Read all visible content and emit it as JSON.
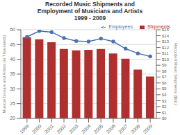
{
  "chart_data": {
    "type": "bar",
    "title": "Recorded Music Shipments and\nEmployment of Musicians and Artists\n1999 - 2009",
    "categories": [
      "1999",
      "2000",
      "2001",
      "2002",
      "2003",
      "2004",
      "2005",
      "2006",
      "2007",
      "2008",
      "2009"
    ],
    "series": [
      {
        "name": "Shipments",
        "type": "bar",
        "color": "#b03030",
        "values": [
          47.5,
          46.8,
          45.8,
          43.5,
          43.0,
          43.2,
          43.5,
          42.0,
          40.2,
          36.5,
          34.2
        ]
      },
      {
        "name": "Employees",
        "type": "line",
        "color": "#4a72b0",
        "marker": "circle",
        "axis": "y2",
        "values": [
          13.8,
          14.8,
          14.6,
          13.6,
          13.1,
          13.0,
          13.5,
          13.0,
          11.8,
          11.0,
          10.5
        ]
      }
    ],
    "ylabel": "Musical Groups and Artists (in Thousands)",
    "y2label": "Recorded Music Shipments ($bil.)",
    "ylim": [
      20,
      50
    ],
    "yticks": [
      20,
      25,
      30,
      35,
      40,
      45,
      50
    ],
    "y2lim": [
      0,
      15
    ],
    "y2ticks": [
      {
        "value": 0,
        "label": "$0"
      },
      {
        "value": 1,
        "label": "$1"
      },
      {
        "value": 2,
        "label": "$2"
      },
      {
        "value": 3,
        "label": "$3"
      },
      {
        "value": 4,
        "label": "$4"
      },
      {
        "value": 5,
        "label": "$5"
      },
      {
        "value": 6,
        "label": "$6"
      },
      {
        "value": 7,
        "label": "$7"
      },
      {
        "value": 8,
        "label": "$8"
      },
      {
        "value": 9,
        "label": "$9"
      },
      {
        "value": 10,
        "label": "$10"
      },
      {
        "value": 11,
        "label": "$11"
      },
      {
        "value": 12,
        "label": "$12"
      },
      {
        "value": 13,
        "label": "$13"
      },
      {
        "value": 14,
        "label": "$14"
      },
      {
        "value": 15,
        "label": "$15"
      }
    ],
    "grid": true,
    "legend": "upper right"
  }
}
